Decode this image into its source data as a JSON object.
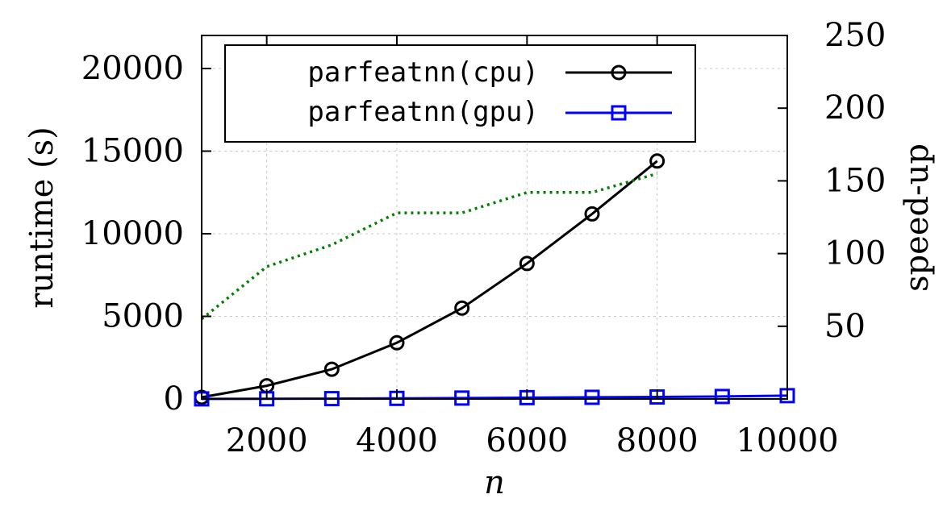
{
  "chart_data": {
    "type": "line",
    "xlabel": "n",
    "ylabel": "runtime (s)",
    "y2label": "speed-up",
    "xlim": [
      1000,
      10000
    ],
    "ylim": [
      0,
      22000
    ],
    "y2lim": [
      0,
      250
    ],
    "x_ticks": [
      "2000",
      "4000",
      "6000",
      "8000",
      "10000"
    ],
    "y_ticks": [
      "0",
      "5000",
      "10000",
      "15000",
      "20000"
    ],
    "y2_ticks": [
      "50",
      "100",
      "150",
      "200",
      "250"
    ],
    "grid": true,
    "legend_position": "top-left",
    "series": [
      {
        "name": "parfeatnn(cpu)",
        "axis": "left",
        "color": "#000000",
        "marker": "circle",
        "x": [
          1000,
          2000,
          3000,
          4000,
          5000,
          6000,
          7000,
          8000
        ],
        "y": [
          100,
          800,
          1800,
          3400,
          5500,
          8200,
          11200,
          14400
        ]
      },
      {
        "name": "parfeatnn(gpu)",
        "axis": "left",
        "color": "#0000ff",
        "marker": "square",
        "x": [
          1000,
          2000,
          3000,
          4000,
          5000,
          6000,
          7000,
          8000,
          9000,
          10000
        ],
        "y": [
          5,
          10,
          20,
          35,
          55,
          80,
          100,
          120,
          150,
          200
        ]
      },
      {
        "axis": "right",
        "color": "#008000",
        "style": "dotted",
        "x": [
          1000,
          2000,
          3000,
          4000,
          5000,
          6000,
          7000,
          8000
        ],
        "y": [
          55,
          91,
          106,
          128,
          128,
          142,
          142,
          155
        ]
      }
    ]
  }
}
